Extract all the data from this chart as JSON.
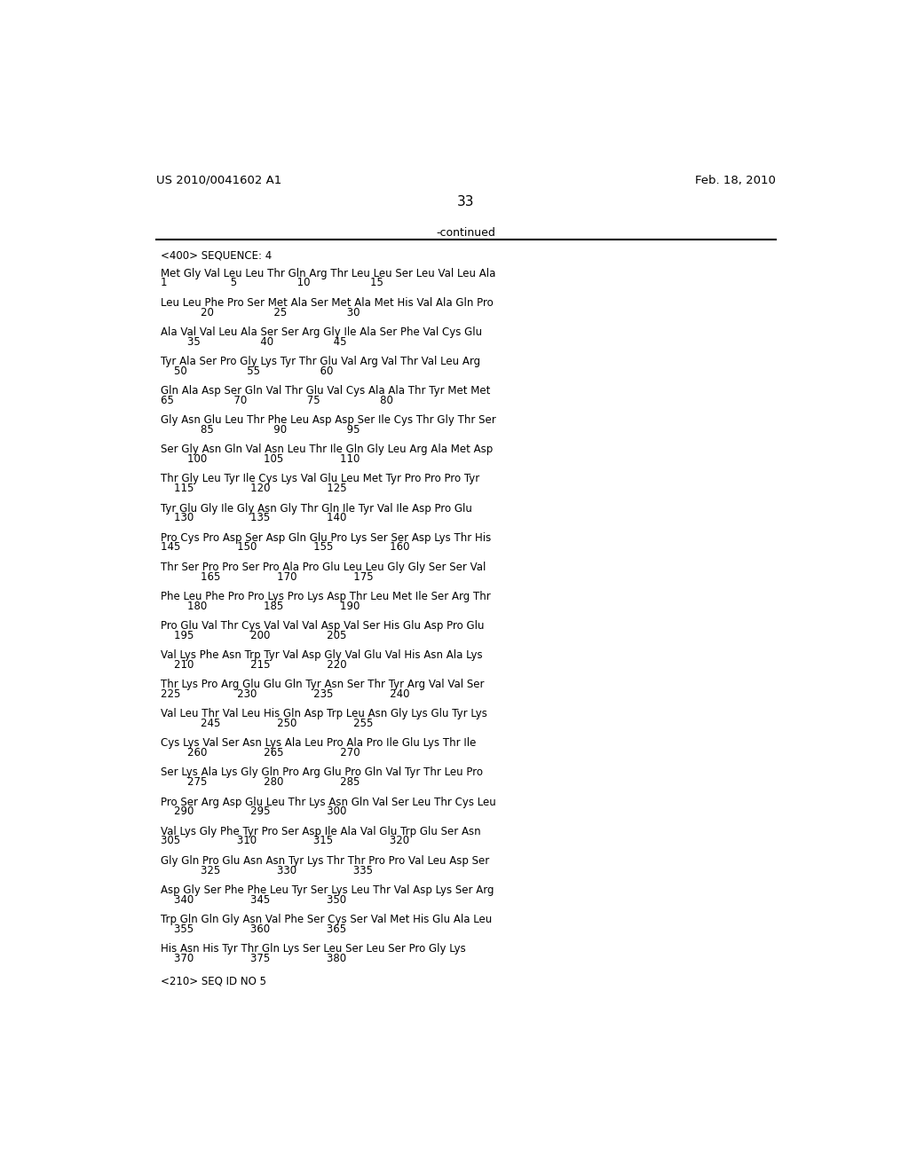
{
  "header_left": "US 2010/0041602 A1",
  "header_right": "Feb. 18, 2010",
  "page_number": "33",
  "continued_text": "-continued",
  "background_color": "#ffffff",
  "text_color": "#000000",
  "sequence_label": "<400> SEQUENCE: 4",
  "seq_id_label": "<210> SEQ ID NO 5",
  "lines": [
    {
      "seq": "Met Gly Val Leu Leu Thr Gln Arg Thr Leu Leu Ser Leu Val Leu Ala",
      "nums": "1                   5                  10                  15"
    },
    {
      "seq": "Leu Leu Phe Pro Ser Met Ala Ser Met Ala Met His Val Ala Gln Pro",
      "nums": "            20                  25                  30"
    },
    {
      "seq": "Ala Val Val Leu Ala Ser Ser Arg Gly Ile Ala Ser Phe Val Cys Glu",
      "nums": "        35                  40                  45"
    },
    {
      "seq": "Tyr Ala Ser Pro Gly Lys Tyr Thr Glu Val Arg Val Thr Val Leu Arg",
      "nums": "    50                  55                  60"
    },
    {
      "seq": "Gln Ala Asp Ser Gln Val Thr Glu Val Cys Ala Ala Thr Tyr Met Met",
      "nums": "65                  70                  75                  80"
    },
    {
      "seq": "Gly Asn Glu Leu Thr Phe Leu Asp Asp Ser Ile Cys Thr Gly Thr Ser",
      "nums": "            85                  90                  95"
    },
    {
      "seq": "Ser Gly Asn Gln Val Asn Leu Thr Ile Gln Gly Leu Arg Ala Met Asp",
      "nums": "        100                 105                 110"
    },
    {
      "seq": "Thr Gly Leu Tyr Ile Cys Lys Val Glu Leu Met Tyr Pro Pro Pro Tyr",
      "nums": "    115                 120                 125"
    },
    {
      "seq": "Tyr Glu Gly Ile Gly Asn Gly Thr Gln Ile Tyr Val Ile Asp Pro Glu",
      "nums": "    130                 135                 140"
    },
    {
      "seq": "Pro Cys Pro Asp Ser Asp Gln Glu Pro Lys Ser Ser Asp Lys Thr His",
      "nums": "145                 150                 155                 160"
    },
    {
      "seq": "Thr Ser Pro Pro Ser Pro Ala Pro Glu Leu Leu Gly Gly Ser Ser Val",
      "nums": "            165                 170                 175"
    },
    {
      "seq": "Phe Leu Phe Pro Pro Lys Pro Lys Asp Thr Leu Met Ile Ser Arg Thr",
      "nums": "        180                 185                 190"
    },
    {
      "seq": "Pro Glu Val Thr Cys Val Val Val Asp Val Ser His Glu Asp Pro Glu",
      "nums": "    195                 200                 205"
    },
    {
      "seq": "Val Lys Phe Asn Trp Tyr Val Asp Gly Val Glu Val His Asn Ala Lys",
      "nums": "    210                 215                 220"
    },
    {
      "seq": "Thr Lys Pro Arg Glu Glu Gln Tyr Asn Ser Thr Tyr Arg Val Val Ser",
      "nums": "225                 230                 235                 240"
    },
    {
      "seq": "Val Leu Thr Val Leu His Gln Asp Trp Leu Asn Gly Lys Glu Tyr Lys",
      "nums": "            245                 250                 255"
    },
    {
      "seq": "Cys Lys Val Ser Asn Lys Ala Leu Pro Ala Pro Ile Glu Lys Thr Ile",
      "nums": "        260                 265                 270"
    },
    {
      "seq": "Ser Lys Ala Lys Gly Gln Pro Arg Glu Pro Gln Val Tyr Thr Leu Pro",
      "nums": "        275                 280                 285"
    },
    {
      "seq": "Pro Ser Arg Asp Glu Leu Thr Lys Asn Gln Val Ser Leu Thr Cys Leu",
      "nums": "    290                 295                 300"
    },
    {
      "seq": "Val Lys Gly Phe Tyr Pro Ser Asp Ile Ala Val Glu Trp Glu Ser Asn",
      "nums": "305                 310                 315                 320"
    },
    {
      "seq": "Gly Gln Pro Glu Asn Asn Tyr Lys Thr Thr Pro Pro Val Leu Asp Ser",
      "nums": "            325                 330                 335"
    },
    {
      "seq": "Asp Gly Ser Phe Phe Leu Tyr Ser Lys Leu Thr Val Asp Lys Ser Arg",
      "nums": "    340                 345                 350"
    },
    {
      "seq": "Trp Gln Gln Gly Asn Val Phe Ser Cys Ser Val Met His Glu Ala Leu",
      "nums": "    355                 360                 365"
    },
    {
      "seq": "His Asn His Tyr Thr Gln Lys Ser Leu Ser Leu Ser Pro Gly Lys",
      "nums": "    370                 375                 380"
    }
  ]
}
